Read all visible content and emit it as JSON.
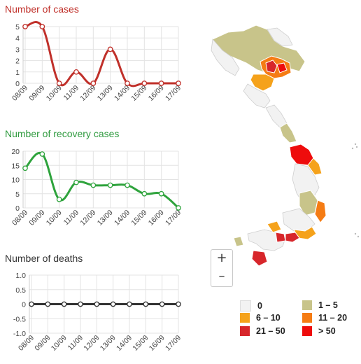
{
  "charts": [
    {
      "title": "Number of cases",
      "title_color": "#c0302a",
      "line_color": "#c0302a",
      "chart_data": {
        "type": "line",
        "categories": [
          "08/09",
          "09/09",
          "10/09",
          "11/09",
          "12/09",
          "13/09",
          "14/09",
          "15/09",
          "16/09",
          "17/09"
        ],
        "values": [
          5,
          5,
          0,
          1,
          0,
          3,
          0,
          0,
          0,
          0
        ],
        "yticks": [
          0,
          1,
          2,
          3,
          4,
          5
        ],
        "ylim": [
          0,
          5
        ],
        "title": "Number of cases",
        "grid": true
      }
    },
    {
      "title": "Number of recovery cases",
      "title_color": "#2e9a3e",
      "line_color": "#2ea33c",
      "chart_data": {
        "type": "line",
        "categories": [
          "08/09",
          "09/09",
          "10/09",
          "11/09",
          "12/09",
          "13/09",
          "14/09",
          "15/09",
          "16/09",
          "17/09"
        ],
        "values": [
          14,
          19,
          3,
          9,
          8,
          8,
          8,
          5,
          5,
          0
        ],
        "yticks": [
          0,
          5,
          10,
          15,
          20
        ],
        "ylim": [
          0,
          20
        ],
        "title": "Number of recovery cases",
        "grid": true
      }
    },
    {
      "title": "Number of deaths",
      "title_color": "#333333",
      "line_color": "#333333",
      "chart_data": {
        "type": "line",
        "categories": [
          "08/09",
          "09/09",
          "10/09",
          "11/09",
          "12/09",
          "13/09",
          "14/09",
          "15/09",
          "16/09",
          "17/09"
        ],
        "values": [
          0,
          0,
          0,
          0,
          0,
          0,
          0,
          0,
          0,
          0
        ],
        "yticks": [
          "-1.0",
          "-0.5",
          "0",
          "0.5",
          "1.0"
        ],
        "ylim": [
          -1,
          1
        ],
        "title": "Number of deaths",
        "grid": true
      }
    }
  ],
  "map": {
    "zoom_in_label": "+",
    "zoom_out_label": "–"
  },
  "legend": [
    {
      "label": "0",
      "color": "#f2f2f2"
    },
    {
      "label": "1 – 5",
      "color": "#c8c48a"
    },
    {
      "label": "6 – 10",
      "color": "#f5a21b"
    },
    {
      "label": "11 – 20",
      "color": "#f57c14"
    },
    {
      "label": "21 – 50",
      "color": "#d7262b"
    },
    {
      "label": "> 50",
      "color": "#ee0c0c"
    }
  ]
}
